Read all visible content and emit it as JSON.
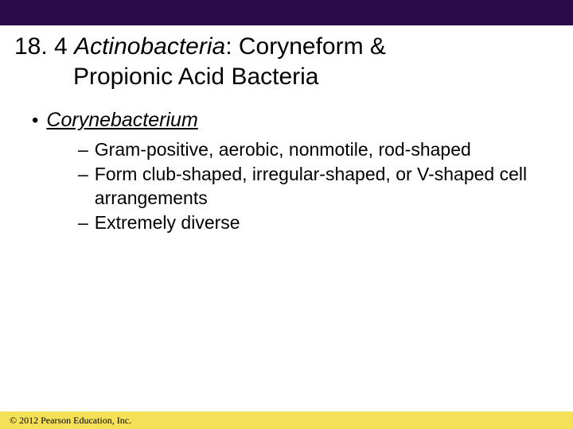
{
  "colors": {
    "top_bar": "#2d0a4a",
    "footer_bg": "#f4e158",
    "text": "#000000",
    "background": "#ffffff"
  },
  "title": {
    "section_number": "18. 4",
    "italic_part": "Actinobacteria",
    "rest_line1": ": Coryneform &",
    "line2": "Propionic Acid Bacteria",
    "fontsize": 30
  },
  "bullet": {
    "marker": "•",
    "text": "Corynebacterium",
    "fontsize": 25
  },
  "sub_bullets": [
    {
      "dash": "–",
      "text": "Gram-positive, aerobic, nonmotile, rod-shaped"
    },
    {
      "dash": "–",
      "text": "Form club-shaped, irregular-shaped, or V-shaped cell arrangements"
    },
    {
      "dash": "–",
      "text": "Extremely diverse"
    }
  ],
  "sub_fontsize": 23,
  "footer": {
    "text": "© 2012 Pearson Education, Inc.",
    "fontsize": 12
  }
}
